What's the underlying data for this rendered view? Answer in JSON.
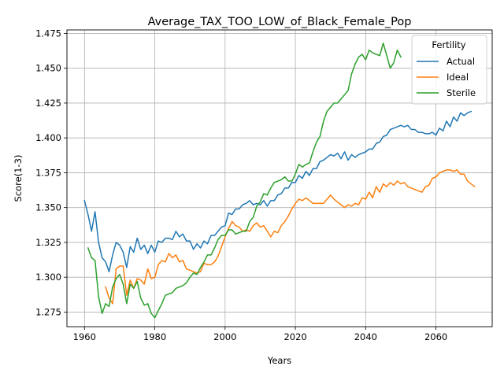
{
  "chart_data": {
    "type": "line",
    "title": "Average_TAX_TOO_LOW_of_Black_Female_Pop",
    "xlabel": "Years",
    "ylabel": "Score(1-3)",
    "xlim": [
      1955,
      2076
    ],
    "ylim": [
      1.2645,
      1.4775
    ],
    "xticks": [
      1960,
      1980,
      2000,
      2020,
      2040,
      2060
    ],
    "xtick_labels": [
      "1960",
      "1980",
      "2000",
      "2020",
      "2040",
      "2060"
    ],
    "yticks": [
      1.275,
      1.3,
      1.325,
      1.35,
      1.375,
      1.4,
      1.425,
      1.45,
      1.475
    ],
    "ytick_labels": [
      "1.275",
      "1.300",
      "1.325",
      "1.350",
      "1.375",
      "1.400",
      "1.425",
      "1.450",
      "1.475"
    ],
    "grid": true,
    "legend": {
      "title": "Fertility",
      "position": "top-right"
    },
    "series": [
      {
        "name": "Actual",
        "color": "#1f77b4",
        "points": [
          [
            1960,
            1.355
          ],
          [
            1961,
            1.345
          ],
          [
            1962,
            1.333
          ],
          [
            1963,
            1.347
          ],
          [
            1964,
            1.325
          ],
          [
            1965,
            1.314
          ],
          [
            1966,
            1.311
          ],
          [
            1967,
            1.304
          ],
          [
            1968,
            1.316
          ],
          [
            1969,
            1.325
          ],
          [
            1970,
            1.323
          ],
          [
            1971,
            1.318
          ],
          [
            1972,
            1.307
          ],
          [
            1973,
            1.322
          ],
          [
            1974,
            1.318
          ],
          [
            1975,
            1.328
          ],
          [
            1976,
            1.32
          ],
          [
            1977,
            1.323
          ],
          [
            1978,
            1.317
          ],
          [
            1979,
            1.323
          ],
          [
            1980,
            1.318
          ],
          [
            1981,
            1.326
          ],
          [
            1982,
            1.325
          ],
          [
            1983,
            1.328
          ],
          [
            1984,
            1.328
          ],
          [
            1985,
            1.327
          ],
          [
            1986,
            1.333
          ],
          [
            1987,
            1.329
          ],
          [
            1988,
            1.331
          ],
          [
            1989,
            1.326
          ],
          [
            1990,
            1.326
          ],
          [
            1991,
            1.32
          ],
          [
            1992,
            1.324
          ],
          [
            1993,
            1.321
          ],
          [
            1994,
            1.326
          ],
          [
            1995,
            1.324
          ],
          [
            1996,
            1.33
          ],
          [
            1997,
            1.33
          ],
          [
            1998,
            1.333
          ],
          [
            1999,
            1.336
          ],
          [
            2000,
            1.337
          ],
          [
            2001,
            1.346
          ],
          [
            2002,
            1.345
          ],
          [
            2003,
            1.349
          ],
          [
            2004,
            1.349
          ],
          [
            2005,
            1.352
          ],
          [
            2006,
            1.353
          ],
          [
            2007,
            1.355
          ],
          [
            2008,
            1.352
          ],
          [
            2009,
            1.353
          ],
          [
            2010,
            1.352
          ],
          [
            2011,
            1.355
          ],
          [
            2012,
            1.351
          ],
          [
            2013,
            1.355
          ],
          [
            2014,
            1.355
          ],
          [
            2015,
            1.359
          ],
          [
            2016,
            1.36
          ],
          [
            2017,
            1.364
          ],
          [
            2018,
            1.364
          ],
          [
            2019,
            1.368
          ],
          [
            2020,
            1.368
          ],
          [
            2021,
            1.373
          ],
          [
            2022,
            1.371
          ],
          [
            2023,
            1.376
          ],
          [
            2024,
            1.373
          ],
          [
            2025,
            1.378
          ],
          [
            2026,
            1.378
          ],
          [
            2027,
            1.383
          ],
          [
            2028,
            1.384
          ],
          [
            2029,
            1.386
          ],
          [
            2030,
            1.388
          ],
          [
            2031,
            1.387
          ],
          [
            2032,
            1.389
          ],
          [
            2033,
            1.385
          ],
          [
            2034,
            1.39
          ],
          [
            2035,
            1.384
          ],
          [
            2036,
            1.388
          ],
          [
            2037,
            1.386
          ],
          [
            2038,
            1.388
          ],
          [
            2039,
            1.389
          ],
          [
            2040,
            1.39
          ],
          [
            2041,
            1.392
          ],
          [
            2042,
            1.392
          ],
          [
            2043,
            1.396
          ],
          [
            2044,
            1.397
          ],
          [
            2045,
            1.401
          ],
          [
            2046,
            1.402
          ],
          [
            2047,
            1.406
          ],
          [
            2048,
            1.407
          ],
          [
            2049,
            1.408
          ],
          [
            2050,
            1.409
          ],
          [
            2051,
            1.408
          ],
          [
            2052,
            1.409
          ],
          [
            2053,
            1.406
          ],
          [
            2054,
            1.406
          ],
          [
            2055,
            1.404
          ],
          [
            2056,
            1.404
          ],
          [
            2057,
            1.403
          ],
          [
            2058,
            1.403
          ],
          [
            2059,
            1.404
          ],
          [
            2060,
            1.402
          ],
          [
            2061,
            1.407
          ],
          [
            2062,
            1.405
          ],
          [
            2063,
            1.412
          ],
          [
            2064,
            1.408
          ],
          [
            2065,
            1.415
          ],
          [
            2066,
            1.412
          ],
          [
            2067,
            1.418
          ],
          [
            2068,
            1.416
          ],
          [
            2069,
            1.418
          ],
          [
            2070,
            1.419
          ]
        ]
      },
      {
        "name": "Ideal",
        "color": "#ff7f0e",
        "points": [
          [
            1966,
            1.293
          ],
          [
            1967,
            1.285
          ],
          [
            1968,
            1.281
          ],
          [
            1969,
            1.306
          ],
          [
            1970,
            1.308
          ],
          [
            1971,
            1.308
          ],
          [
            1972,
            1.287
          ],
          [
            1973,
            1.298
          ],
          [
            1974,
            1.292
          ],
          [
            1975,
            1.299
          ],
          [
            1976,
            1.298
          ],
          [
            1977,
            1.295
          ],
          [
            1978,
            1.306
          ],
          [
            1979,
            1.299
          ],
          [
            1980,
            1.3
          ],
          [
            1981,
            1.309
          ],
          [
            1982,
            1.312
          ],
          [
            1983,
            1.311
          ],
          [
            1984,
            1.317
          ],
          [
            1985,
            1.314
          ],
          [
            1986,
            1.316
          ],
          [
            1987,
            1.311
          ],
          [
            1988,
            1.312
          ],
          [
            1989,
            1.306
          ],
          [
            1990,
            1.305
          ],
          [
            1991,
            1.304
          ],
          [
            1992,
            1.303
          ],
          [
            1993,
            1.304
          ],
          [
            1994,
            1.31
          ],
          [
            1995,
            1.309
          ],
          [
            1996,
            1.309
          ],
          [
            1997,
            1.311
          ],
          [
            1998,
            1.315
          ],
          [
            1999,
            1.322
          ],
          [
            2000,
            1.329
          ],
          [
            2001,
            1.335
          ],
          [
            2002,
            1.34
          ],
          [
            2003,
            1.337
          ],
          [
            2004,
            1.336
          ],
          [
            2005,
            1.333
          ],
          [
            2006,
            1.334
          ],
          [
            2007,
            1.333
          ],
          [
            2008,
            1.337
          ],
          [
            2009,
            1.339
          ],
          [
            2010,
            1.336
          ],
          [
            2011,
            1.337
          ],
          [
            2012,
            1.333
          ],
          [
            2013,
            1.329
          ],
          [
            2014,
            1.333
          ],
          [
            2015,
            1.332
          ],
          [
            2016,
            1.337
          ],
          [
            2017,
            1.34
          ],
          [
            2018,
            1.344
          ],
          [
            2019,
            1.349
          ],
          [
            2020,
            1.353
          ],
          [
            2021,
            1.356
          ],
          [
            2022,
            1.355
          ],
          [
            2023,
            1.357
          ],
          [
            2024,
            1.355
          ],
          [
            2025,
            1.353
          ],
          [
            2026,
            1.353
          ],
          [
            2027,
            1.353
          ],
          [
            2028,
            1.353
          ],
          [
            2029,
            1.356
          ],
          [
            2030,
            1.359
          ],
          [
            2031,
            1.356
          ],
          [
            2032,
            1.354
          ],
          [
            2033,
            1.352
          ],
          [
            2034,
            1.35
          ],
          [
            2035,
            1.352
          ],
          [
            2036,
            1.351
          ],
          [
            2037,
            1.353
          ],
          [
            2038,
            1.352
          ],
          [
            2039,
            1.357
          ],
          [
            2040,
            1.356
          ],
          [
            2041,
            1.361
          ],
          [
            2042,
            1.357
          ],
          [
            2043,
            1.365
          ],
          [
            2044,
            1.361
          ],
          [
            2045,
            1.367
          ],
          [
            2046,
            1.365
          ],
          [
            2047,
            1.368
          ],
          [
            2048,
            1.366
          ],
          [
            2049,
            1.369
          ],
          [
            2050,
            1.367
          ],
          [
            2051,
            1.368
          ],
          [
            2052,
            1.365
          ],
          [
            2053,
            1.364
          ],
          [
            2054,
            1.363
          ],
          [
            2055,
            1.362
          ],
          [
            2056,
            1.361
          ],
          [
            2057,
            1.365
          ],
          [
            2058,
            1.366
          ],
          [
            2059,
            1.371
          ],
          [
            2060,
            1.372
          ],
          [
            2061,
            1.375
          ],
          [
            2062,
            1.376
          ],
          [
            2063,
            1.377
          ],
          [
            2064,
            1.377
          ],
          [
            2065,
            1.376
          ],
          [
            2066,
            1.377
          ],
          [
            2067,
            1.374
          ],
          [
            2068,
            1.374
          ],
          [
            2069,
            1.369
          ],
          [
            2070,
            1.367
          ],
          [
            2071,
            1.365
          ]
        ]
      },
      {
        "name": "Sterile",
        "color": "#2ca02c",
        "points": [
          [
            1961,
            1.321
          ],
          [
            1962,
            1.314
          ],
          [
            1963,
            1.312
          ],
          [
            1964,
            1.286
          ],
          [
            1965,
            1.274
          ],
          [
            1966,
            1.281
          ],
          [
            1967,
            1.279
          ],
          [
            1968,
            1.293
          ],
          [
            1969,
            1.299
          ],
          [
            1970,
            1.302
          ],
          [
            1971,
            1.295
          ],
          [
            1972,
            1.281
          ],
          [
            1973,
            1.295
          ],
          [
            1974,
            1.292
          ],
          [
            1975,
            1.297
          ],
          [
            1976,
            1.285
          ],
          [
            1977,
            1.28
          ],
          [
            1978,
            1.281
          ],
          [
            1979,
            1.274
          ],
          [
            1980,
            1.271
          ],
          [
            1981,
            1.276
          ],
          [
            1982,
            1.281
          ],
          [
            1983,
            1.287
          ],
          [
            1984,
            1.288
          ],
          [
            1985,
            1.289
          ],
          [
            1986,
            1.292
          ],
          [
            1987,
            1.293
          ],
          [
            1988,
            1.294
          ],
          [
            1989,
            1.296
          ],
          [
            1990,
            1.3
          ],
          [
            1991,
            1.303
          ],
          [
            1992,
            1.302
          ],
          [
            1993,
            1.307
          ],
          [
            1994,
            1.311
          ],
          [
            1995,
            1.316
          ],
          [
            1996,
            1.316
          ],
          [
            1997,
            1.321
          ],
          [
            1998,
            1.327
          ],
          [
            1999,
            1.33
          ],
          [
            2000,
            1.33
          ],
          [
            2001,
            1.334
          ],
          [
            2002,
            1.334
          ],
          [
            2003,
            1.331
          ],
          [
            2004,
            1.332
          ],
          [
            2005,
            1.333
          ],
          [
            2006,
            1.333
          ],
          [
            2007,
            1.34
          ],
          [
            2008,
            1.343
          ],
          [
            2009,
            1.351
          ],
          [
            2010,
            1.354
          ],
          [
            2011,
            1.36
          ],
          [
            2012,
            1.359
          ],
          [
            2013,
            1.364
          ],
          [
            2014,
            1.368
          ],
          [
            2015,
            1.369
          ],
          [
            2016,
            1.37
          ],
          [
            2017,
            1.372
          ],
          [
            2018,
            1.369
          ],
          [
            2019,
            1.369
          ],
          [
            2020,
            1.374
          ],
          [
            2021,
            1.381
          ],
          [
            2022,
            1.379
          ],
          [
            2023,
            1.381
          ],
          [
            2024,
            1.382
          ],
          [
            2025,
            1.39
          ],
          [
            2026,
            1.397
          ],
          [
            2027,
            1.401
          ],
          [
            2028,
            1.412
          ],
          [
            2029,
            1.419
          ],
          [
            2030,
            1.422
          ],
          [
            2031,
            1.425
          ],
          [
            2032,
            1.425
          ],
          [
            2033,
            1.428
          ],
          [
            2034,
            1.431
          ],
          [
            2035,
            1.434
          ],
          [
            2036,
            1.446
          ],
          [
            2037,
            1.453
          ],
          [
            2038,
            1.458
          ],
          [
            2039,
            1.46
          ],
          [
            2040,
            1.456
          ],
          [
            2041,
            1.463
          ],
          [
            2042,
            1.461
          ],
          [
            2043,
            1.46
          ],
          [
            2044,
            1.459
          ],
          [
            2045,
            1.468
          ],
          [
            2046,
            1.459
          ],
          [
            2047,
            1.45
          ],
          [
            2048,
            1.454
          ],
          [
            2049,
            1.463
          ],
          [
            2050,
            1.458
          ]
        ]
      }
    ]
  }
}
